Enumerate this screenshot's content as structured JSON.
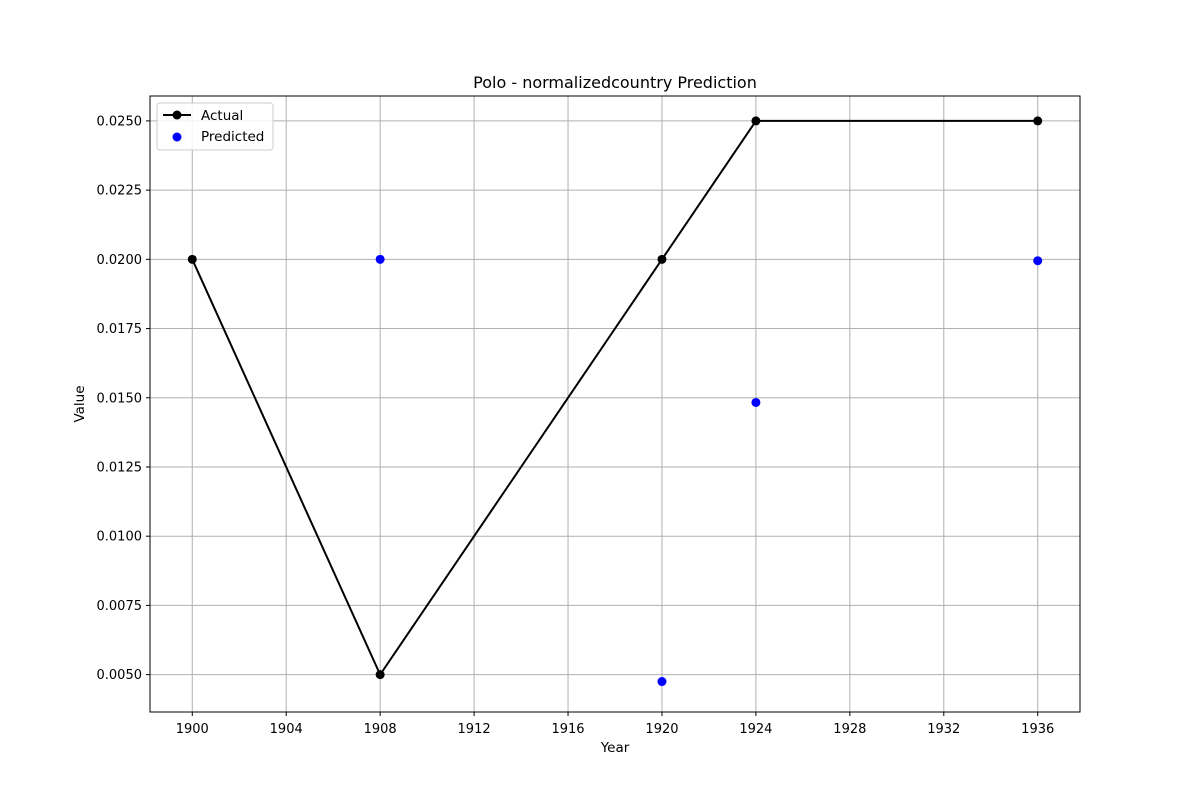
{
  "chart_data": {
    "type": "line",
    "title": "Polo - normalizedcountry Prediction",
    "xlabel": "Year",
    "ylabel": "Value",
    "xlim": [
      1898.2,
      1937.8
    ],
    "ylim": [
      0.00365,
      0.0259
    ],
    "x_ticks": [
      1900,
      1904,
      1908,
      1912,
      1916,
      1920,
      1924,
      1928,
      1932,
      1936
    ],
    "y_ticks": [
      0.005,
      0.0075,
      0.01,
      0.0125,
      0.015,
      0.0175,
      0.02,
      0.0225,
      0.025
    ],
    "y_tick_labels": [
      "0.0050",
      "0.0075",
      "0.0100",
      "0.0125",
      "0.0150",
      "0.0175",
      "0.0200",
      "0.0225",
      "0.0250"
    ],
    "grid": true,
    "legend_position": "upper-left",
    "series": [
      {
        "name": "Actual",
        "kind": "line-marker",
        "color": "#000000",
        "x": [
          1900,
          1908,
          1920,
          1924,
          1936
        ],
        "y": [
          0.02,
          0.005,
          0.02,
          0.025,
          0.025
        ]
      },
      {
        "name": "Predicted",
        "kind": "scatter",
        "color": "#0000ff",
        "x": [
          1908,
          1920,
          1924,
          1936
        ],
        "y": [
          0.02,
          0.00475,
          0.01483,
          0.01995
        ]
      }
    ]
  }
}
